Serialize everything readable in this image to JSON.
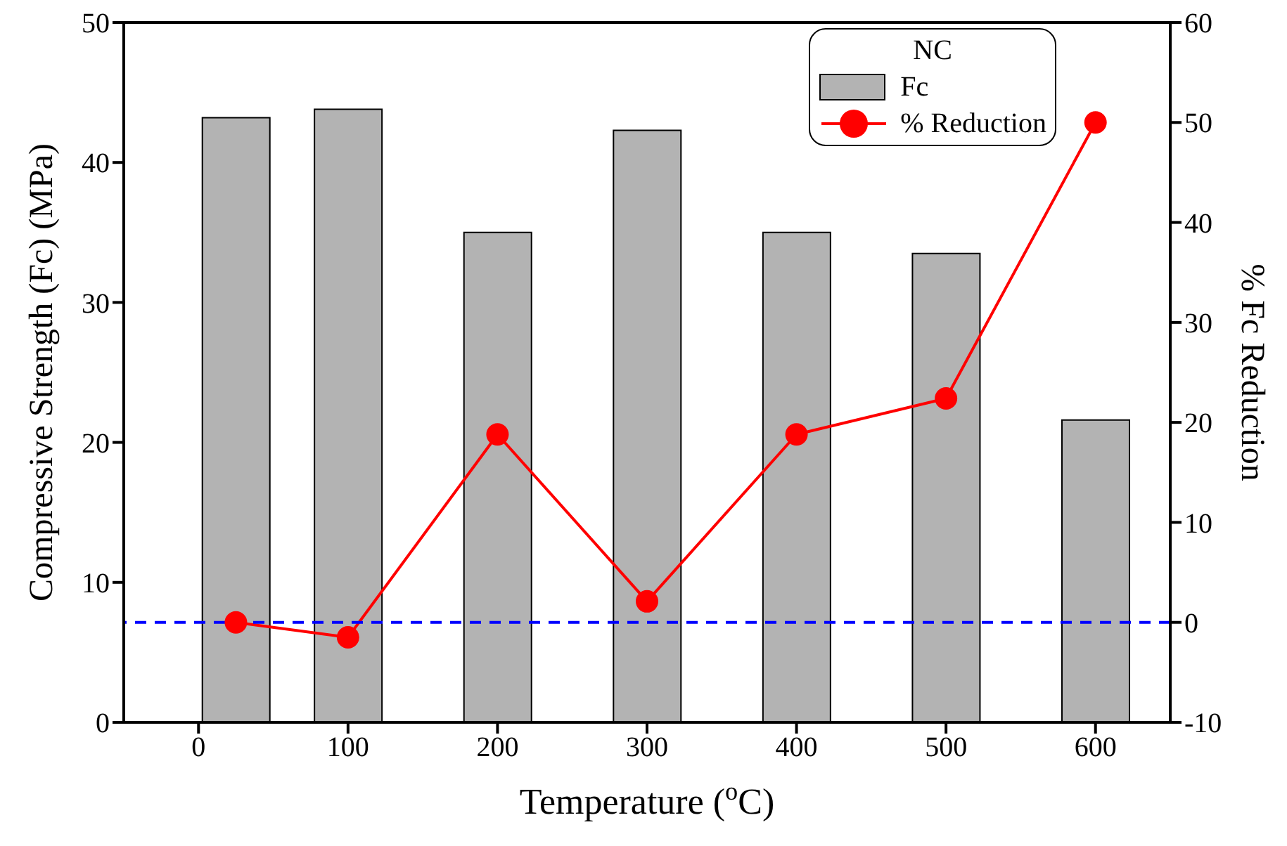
{
  "chart_data": {
    "type": "bar",
    "xlabel": "Temperature ($^{o}$C)",
    "ylabel": "Compressive Strength (Fc) (MPa)",
    "y2label": "% Fc Reduction",
    "legend_title": "NC",
    "x": [
      25,
      100,
      200,
      300,
      400,
      500,
      600
    ],
    "series": [
      {
        "name": "Fc",
        "color": "#b3b3b3",
        "values": [
          43.2,
          43.8,
          35.0,
          42.3,
          35.0,
          33.5,
          21.6
        ]
      },
      {
        "name": "% Reduction",
        "type": "line",
        "axis": "y2",
        "color": "#ff0000",
        "marker": "circle",
        "values": [
          0,
          -1.5,
          18.8,
          2.1,
          18.8,
          22.4,
          50.0
        ]
      }
    ],
    "xlim": [
      -50,
      650
    ],
    "xticks": [
      0,
      100,
      200,
      300,
      400,
      500,
      600
    ],
    "ylim": [
      0,
      50
    ],
    "yticks": [
      0,
      10,
      20,
      30,
      40,
      50
    ],
    "y2lim": [
      -10,
      60
    ],
    "y2ticks": [
      -10,
      0,
      10,
      20,
      30,
      40,
      50,
      60
    ],
    "ref_lines": [
      {
        "axis": "y2",
        "value": 0,
        "color": "#0000ff",
        "line_style": "dashed"
      }
    ],
    "legend": "top right",
    "grid": false
  }
}
